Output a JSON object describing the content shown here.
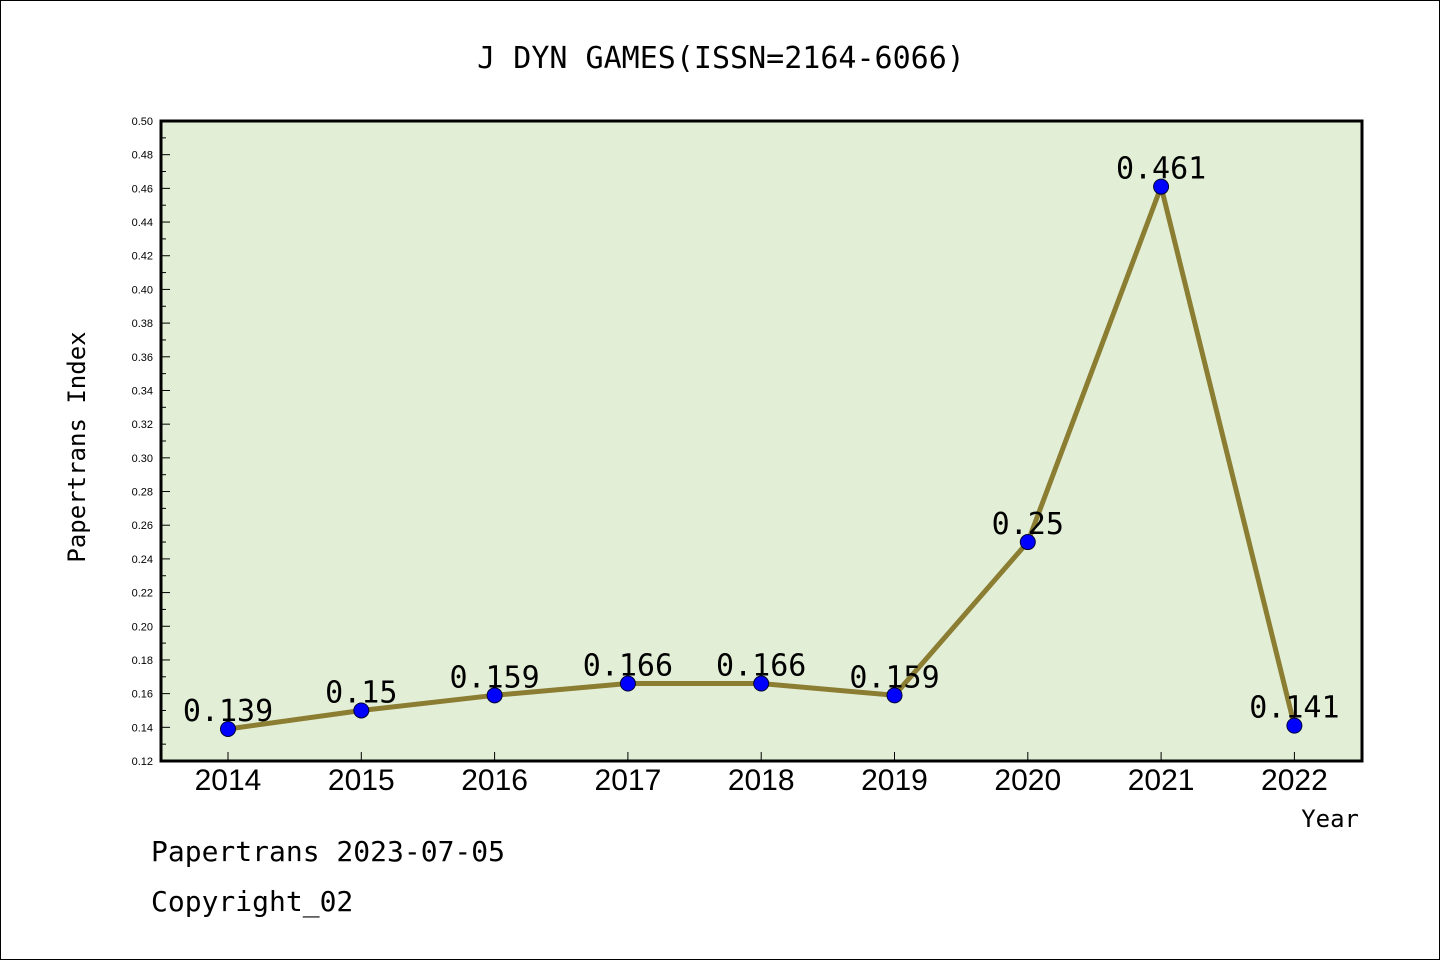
{
  "chart_data": {
    "type": "line",
    "title": "J DYN GAMES(ISSN=2164-6066)",
    "xlabel": "Year",
    "ylabel": "Papertrans Index",
    "categories": [
      "2014",
      "2015",
      "2016",
      "2017",
      "2018",
      "2019",
      "2020",
      "2021",
      "2022"
    ],
    "series": [
      {
        "values": [
          0.139,
          0.15,
          0.159,
          0.166,
          0.166,
          0.159,
          0.25,
          0.461,
          0.141
        ],
        "data_labels": [
          "0.139",
          "0.15",
          "0.159",
          "0.166",
          "0.166",
          "0.159",
          "0.25",
          "0.461",
          "0.141"
        ]
      }
    ],
    "ylim": [
      0.12,
      0.5
    ],
    "yticks": [
      "0.12",
      "0.14",
      "0.16",
      "0.18",
      "0.20",
      "0.22",
      "0.24",
      "0.26",
      "0.28",
      "0.30",
      "0.32",
      "0.34",
      "0.36",
      "0.38",
      "0.40",
      "0.42",
      "0.44",
      "0.46",
      "0.48",
      "0.50"
    ],
    "grid": false,
    "legend": "none",
    "colors": {
      "plot_background": "#e2efd6",
      "line": "#8b7d32",
      "marker": "#0000ff"
    }
  },
  "footer": {
    "line1": "Papertrans 2023-07-05",
    "line2": "Copyright_02"
  }
}
